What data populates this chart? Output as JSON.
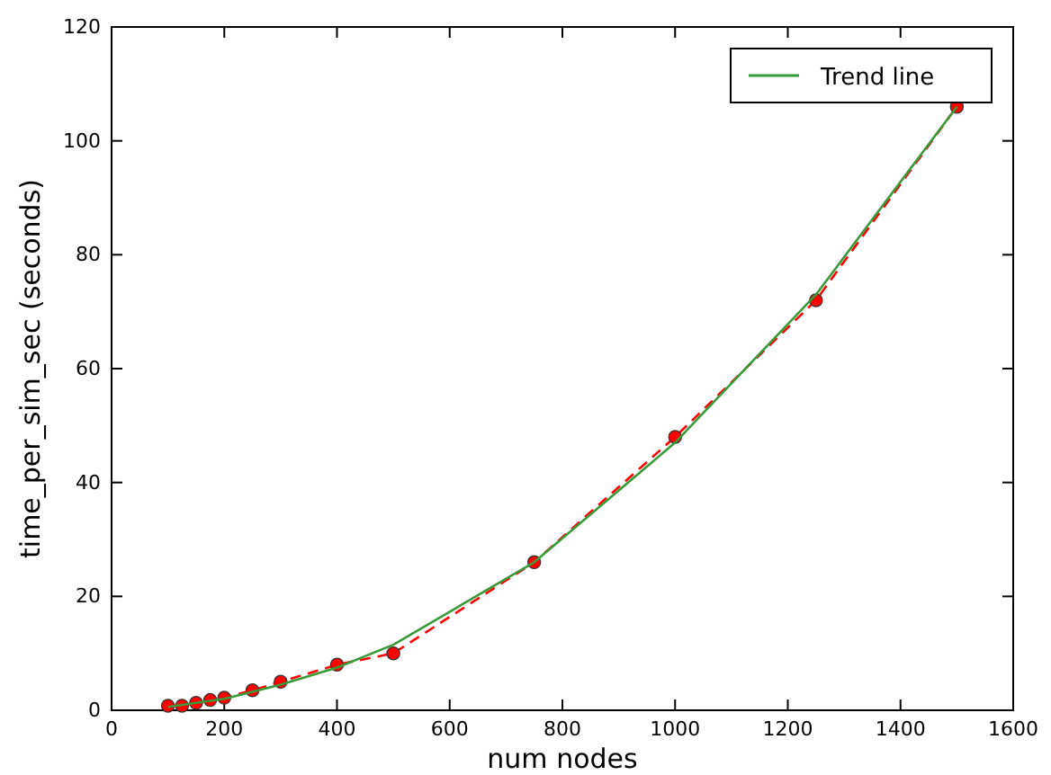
{
  "chart_data": {
    "type": "line",
    "xlabel": "num nodes",
    "ylabel": "time_per_sim_sec  (seconds)",
    "xlim": [
      0,
      1600
    ],
    "xticks": [
      0,
      200,
      400,
      600,
      800,
      1000,
      1200,
      1400,
      1600
    ],
    "ylim": [
      0,
      120
    ],
    "yticks": [
      0,
      20,
      40,
      60,
      80,
      100,
      120
    ],
    "grid": false,
    "legend": "top right",
    "series": [
      {
        "color": "#ff0000",
        "marker": "circle",
        "line_style": "dashed",
        "x": [
          100,
          125,
          150,
          175,
          200,
          250,
          300,
          400,
          500,
          750,
          1000,
          1250,
          1500
        ],
        "values": [
          0.8,
          0.8,
          1.3,
          1.8,
          2.2,
          3.5,
          5,
          8,
          10,
          26,
          48,
          72,
          106
        ]
      },
      {
        "name": "Trend line",
        "color": "#3a9a3a",
        "marker": "none",
        "line_style": "solid",
        "x": [
          100,
          200,
          300,
          400,
          500,
          750,
          1000,
          1250,
          1500
        ],
        "values": [
          0.6,
          2,
          4.5,
          7.5,
          11.5,
          26,
          47,
          73,
          106
        ]
      }
    ]
  }
}
